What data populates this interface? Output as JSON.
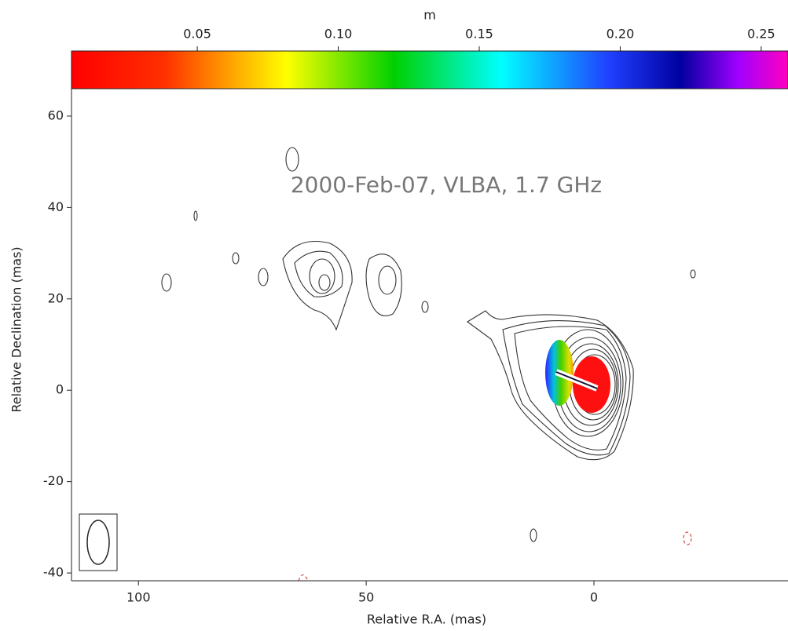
{
  "chart_data": {
    "type": "contour",
    "title": "2000-Feb-07, VLBA, 1.7 GHz",
    "x_label": "Relative R.A. (mas)",
    "y_label": "Relative Declination (mas)",
    "xlim": [
      114.7,
      -42.6
    ],
    "ylim": [
      -41.7,
      66
    ],
    "xticks": [
      100,
      50,
      0
    ],
    "yticks": [
      60,
      40,
      20,
      0,
      -20,
      -40
    ],
    "colorbar": {
      "label": "m",
      "lim": [
        0.0054,
        0.2595
      ],
      "ticks": [
        0.05,
        {
          "value": 0.1,
          "label": "0.10"
        },
        0.15,
        {
          "value": 0.2,
          "label": "0.20"
        },
        0.25
      ]
    }
  }
}
